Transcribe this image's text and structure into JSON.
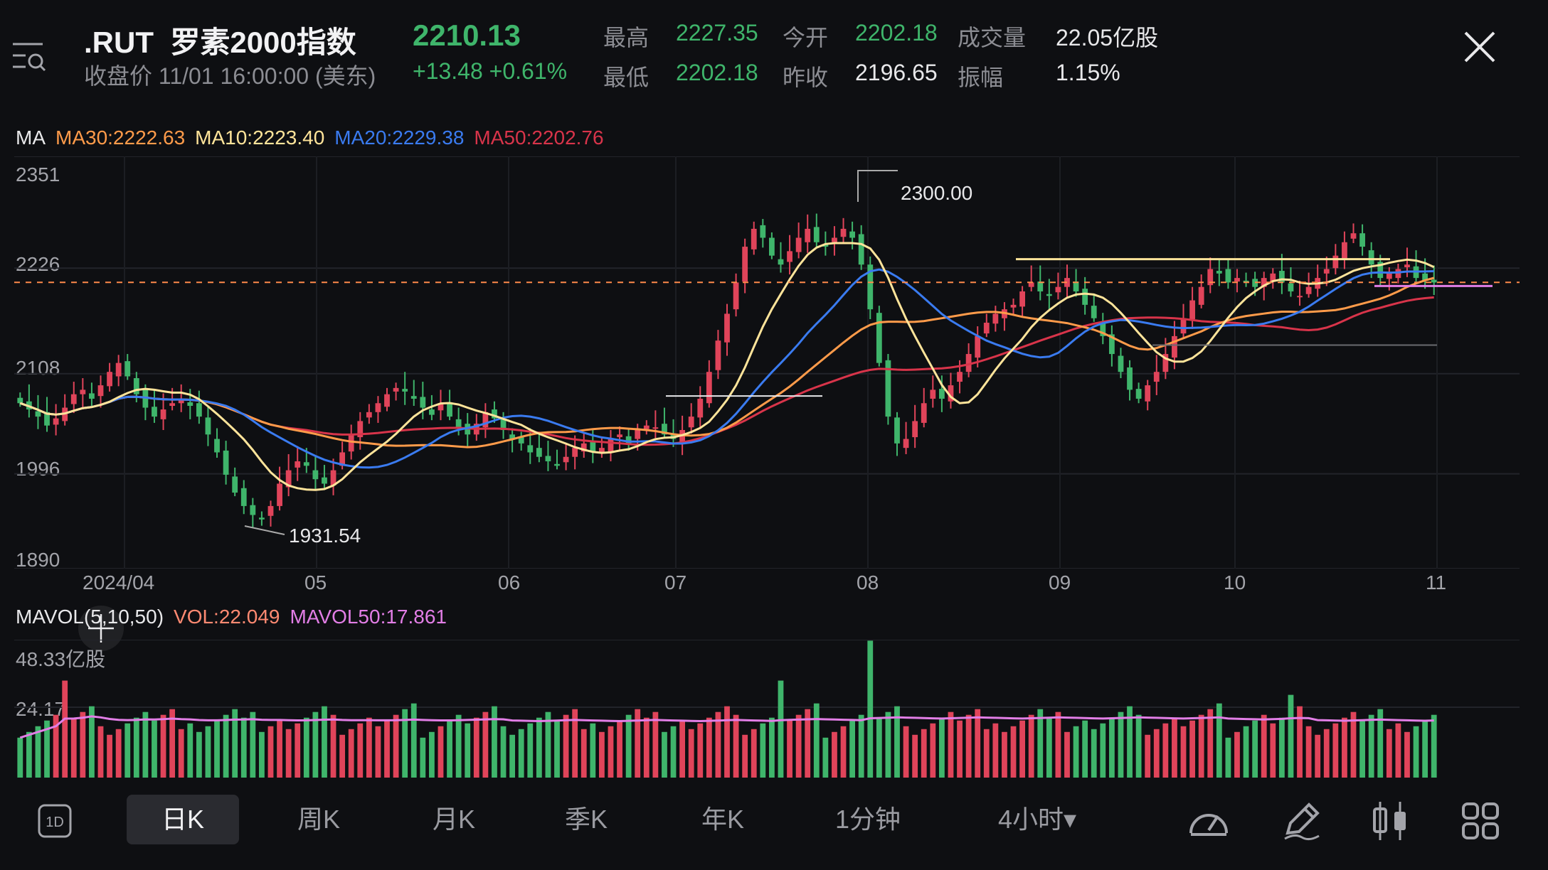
{
  "header": {
    "symbol": ".RUT",
    "name": "罗素2000指数",
    "price": "2210.13",
    "close_label": "收盘价 11/01 16:00:00 (美东)",
    "change": "+13.48",
    "change_pct": "+0.61%",
    "stats": [
      {
        "label": "最高",
        "value": "2227.35",
        "tone": "green"
      },
      {
        "label": "今开",
        "value": "2202.18",
        "tone": "green"
      },
      {
        "label": "成交量",
        "value": "22.05亿股",
        "tone": "white"
      },
      {
        "label": "最低",
        "value": "2202.18",
        "tone": "green"
      },
      {
        "label": "昨收",
        "value": "2196.65",
        "tone": "white"
      },
      {
        "label": "振幅",
        "value": "1.15%",
        "tone": "white"
      }
    ]
  },
  "colors": {
    "up": "#e0445a",
    "down": "#3fb56b",
    "ma30": "#ff9b4a",
    "ma10": "#ffe49a",
    "ma20": "#3a7bf0",
    "ma50": "#d8344a",
    "mavol50": "#e27ee6",
    "vol_label": "#ff8a72"
  },
  "ma_legend": {
    "title": "MA",
    "ma30": "MA30:2222.63",
    "ma10": "MA10:2223.40",
    "ma20": "MA20:2229.38",
    "ma50": "MA50:2202.76"
  },
  "vol_legend": {
    "title": "MAVOL(5,10,50)",
    "vol": "VOL:22.049",
    "mavol50": "MAVOL50:17.861",
    "max_label": "48.33亿股",
    "mid_label": "24.17"
  },
  "chart_data": {
    "type": "candlestick",
    "y_ticks": [
      "2351",
      "2226",
      "2108",
      "1996",
      "1890"
    ],
    "x_ticks": [
      "2024/04",
      "05",
      "06",
      "07",
      "08",
      "09",
      "10",
      "11"
    ],
    "ylim": [
      1890,
      2351
    ],
    "high_marker": "2300.00",
    "low_marker": "1931.54",
    "last_price": 2210.13,
    "closes": [
      2075,
      2068,
      2060,
      2050,
      2058,
      2070,
      2085,
      2090,
      2080,
      2095,
      2110,
      2120,
      2105,
      2085,
      2070,
      2060,
      2068,
      2075,
      2080,
      2072,
      2060,
      2040,
      2020,
      1995,
      1975,
      1960,
      1950,
      1945,
      1960,
      1985,
      2000,
      2010,
      2005,
      1990,
      1985,
      2000,
      2020,
      2040,
      2055,
      2065,
      2075,
      2085,
      2092,
      2088,
      2080,
      2070,
      2062,
      2075,
      2060,
      2048,
      2040,
      2052,
      2065,
      2058,
      2045,
      2035,
      2030,
      2020,
      2015,
      2010,
      2005,
      2015,
      2025,
      2030,
      2020,
      2025,
      2035,
      2040,
      2030,
      2045,
      2050,
      2048,
      2040,
      2035,
      2045,
      2060,
      2080,
      2110,
      2145,
      2175,
      2210,
      2250,
      2270,
      2260,
      2240,
      2230,
      2245,
      2260,
      2270,
      2255,
      2250,
      2260,
      2270,
      2260,
      2230,
      2180,
      2120,
      2060,
      2030,
      2035,
      2055,
      2075,
      2090,
      2080,
      2095,
      2110,
      2130,
      2150,
      2165,
      2175,
      2180,
      2185,
      2200,
      2210,
      2200,
      2195,
      2205,
      2215,
      2200,
      2185,
      2170,
      2150,
      2130,
      2110,
      2090,
      2080,
      2095,
      2110,
      2130,
      2150,
      2170,
      2190,
      2205,
      2225,
      2220,
      2210,
      2215,
      2210,
      2205,
      2215,
      2220,
      2210,
      2200,
      2195,
      2205,
      2215,
      2225,
      2240,
      2255,
      2265,
      2250,
      2230,
      2215,
      2220,
      2225,
      2230,
      2215,
      2212,
      2210
    ]
  },
  "tabs": [
    {
      "label": "日K",
      "active": true
    },
    {
      "label": "周K"
    },
    {
      "label": "月K"
    },
    {
      "label": "季K"
    },
    {
      "label": "年K"
    },
    {
      "label": "1分钟"
    },
    {
      "label": "4小时▾"
    }
  ],
  "icons": [
    "menu-search-icon",
    "close-icon",
    "1d-icon",
    "speedometer-icon",
    "pencil-icon",
    "candle-icon",
    "grid-icon"
  ],
  "icon_1d_label": "1D"
}
